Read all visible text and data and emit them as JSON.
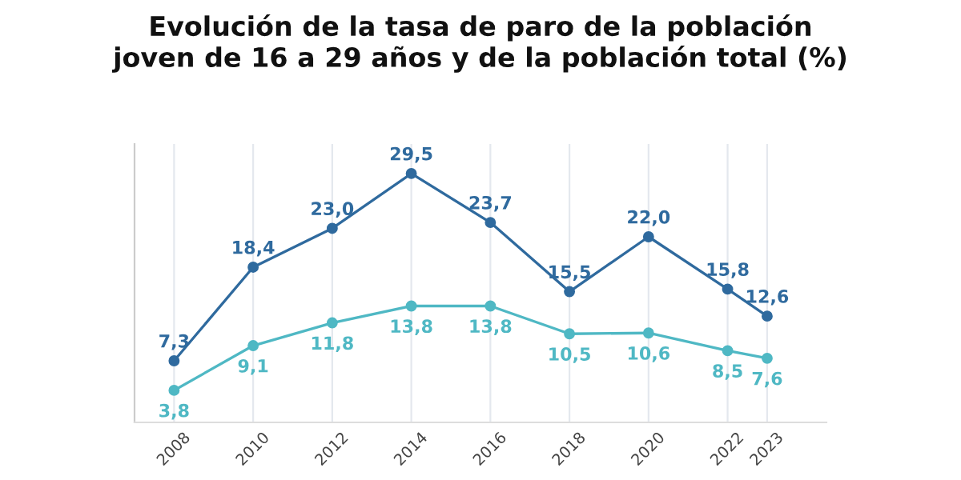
{
  "chart_data": {
    "type": "line",
    "title": "Evolución de la tasa de paro de la población\njoven de 16 a 29 años y de la población total (%)",
    "x": [
      2008,
      2010,
      2012,
      2014,
      2016,
      2018,
      2020,
      2022,
      2023
    ],
    "xlim": [
      2007,
      2024.5
    ],
    "xticks": [
      2008,
      2010,
      2012,
      2014,
      2016,
      2018,
      2020,
      2022,
      2023
    ],
    "ylim": [
      0,
      33
    ],
    "tick_labels": "x",
    "grid": "x",
    "marker": "circle",
    "line_style": "solid",
    "data_labels": true,
    "series": [
      {
        "color": "#2f6a9e",
        "values": [
          7.3,
          18.4,
          23.0,
          29.5,
          23.7,
          15.5,
          22.0,
          15.8,
          12.6
        ],
        "value_labels": [
          "7,3",
          "18,4",
          "23,0",
          "29,5",
          "23,7",
          "15,5",
          "22,0",
          "15,8",
          "12,6"
        ]
      },
      {
        "color": "#4fb8c4",
        "values": [
          3.8,
          9.1,
          11.8,
          13.8,
          13.8,
          10.5,
          10.6,
          8.5,
          7.6
        ],
        "value_labels": [
          "3,8",
          "9,1",
          "11,8",
          "13,8",
          "13,8",
          "10,5",
          "10,6",
          "8,5",
          "7,6"
        ]
      }
    ]
  }
}
